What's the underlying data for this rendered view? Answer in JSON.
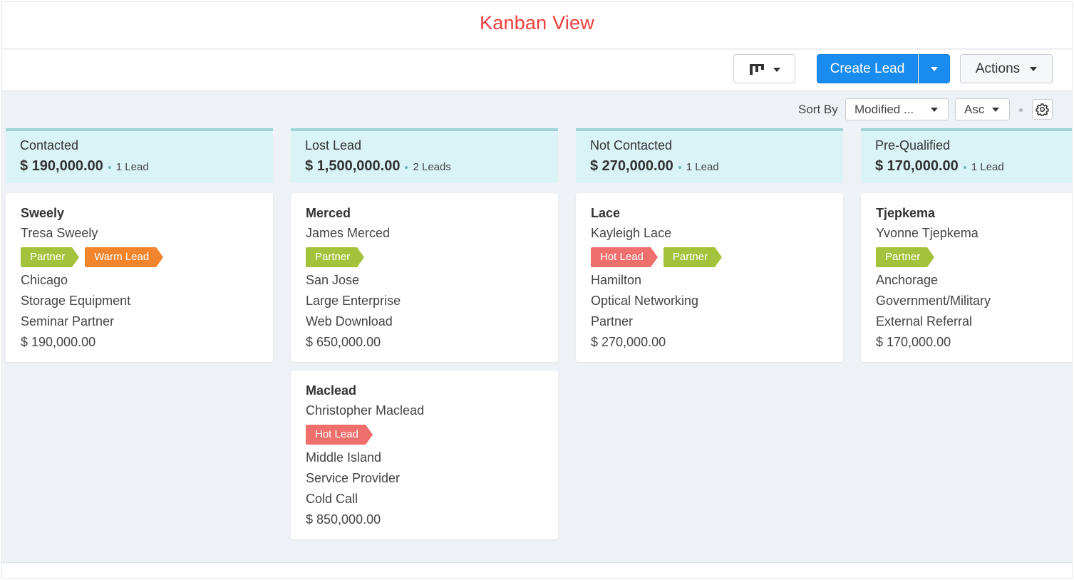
{
  "page": {
    "title": "Kanban View"
  },
  "toolbar": {
    "view_icon": "kanban-icon",
    "create_label": "Create Lead",
    "actions_label": "Actions"
  },
  "sort": {
    "label": "Sort By",
    "field": "Modified ...",
    "direction": "Asc"
  },
  "colors": {
    "partner": "#a4c23b",
    "warm": "#f2852c",
    "hot": "#ef6f6c",
    "primary": "#1a8cf0",
    "column_header": "#d9f3f6"
  },
  "columns": [
    {
      "name": "Contacted",
      "amount": "$ 190,000.00",
      "count": "1 Lead",
      "cards": [
        {
          "title": "Sweely",
          "contact": "Tresa Sweely",
          "tags": [
            {
              "label": "Partner",
              "color": "#a4c23b"
            },
            {
              "label": "Warm Lead",
              "color": "#f2852c"
            }
          ],
          "city": "Chicago",
          "industry": "Storage Equipment",
          "source": "Seminar Partner",
          "value": "$ 190,000.00"
        }
      ]
    },
    {
      "name": "Lost Lead",
      "amount": "$ 1,500,000.00",
      "count": "2 Leads",
      "cards": [
        {
          "title": "Merced",
          "contact": "James Merced",
          "tags": [
            {
              "label": "Partner",
              "color": "#a4c23b"
            }
          ],
          "city": "San Jose",
          "industry": "Large Enterprise",
          "source": "Web Download",
          "value": "$ 650,000.00"
        },
        {
          "title": "Maclead",
          "contact": "Christopher Maclead",
          "tags": [
            {
              "label": "Hot Lead",
              "color": "#ef6f6c"
            }
          ],
          "city": "Middle Island",
          "industry": "Service Provider",
          "source": "Cold Call",
          "value": "$ 850,000.00"
        }
      ]
    },
    {
      "name": "Not Contacted",
      "amount": "$ 270,000.00",
      "count": "1 Lead",
      "cards": [
        {
          "title": "Lace",
          "contact": "Kayleigh Lace",
          "tags": [
            {
              "label": "Hot Lead",
              "color": "#ef6f6c"
            },
            {
              "label": "Partner",
              "color": "#a4c23b"
            }
          ],
          "city": "Hamilton",
          "industry": "Optical Networking",
          "source": "Partner",
          "value": "$ 270,000.00"
        }
      ]
    },
    {
      "name": "Pre-Qualified",
      "amount": "$ 170,000.00",
      "count": "1 Lead",
      "cards": [
        {
          "title": "Tjepkema",
          "contact": "Yvonne Tjepkema",
          "tags": [
            {
              "label": "Partner",
              "color": "#a4c23b"
            }
          ],
          "city": "Anchorage",
          "industry": "Government/Military",
          "source": "External Referral",
          "value": "$ 170,000.00"
        }
      ]
    }
  ]
}
